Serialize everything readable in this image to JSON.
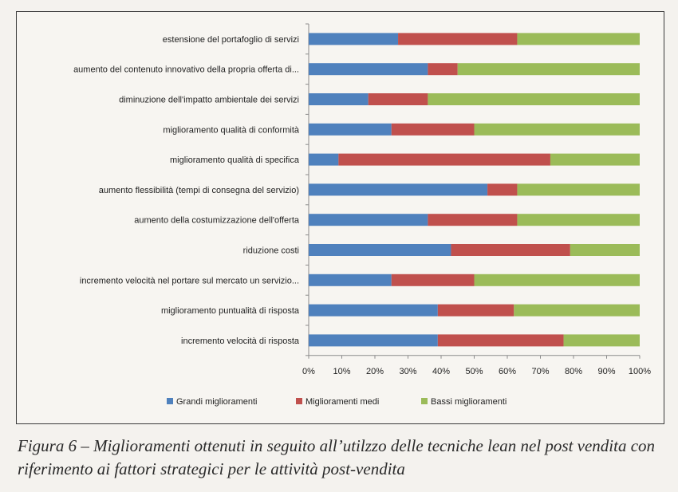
{
  "chart_data": {
    "type": "bar",
    "orientation": "horizontal",
    "stacked": "percent",
    "categories": [
      "estensione del portafoglio di servizi",
      "aumento del contenuto innovativo della propria offerta di...",
      "diminuzione dell'impatto ambientale dei servizi",
      "miglioramento qualità di conformità",
      "miglioramento qualità di specifica",
      "aumento flessibilità (tempi di consegna del servizio)",
      "aumento della costumizzazione  dell'offerta",
      "riduzione costi",
      "incremento velocità nel portare sul mercato un servizio...",
      "miglioramento puntualità di risposta",
      "incremento velocità di risposta"
    ],
    "series": [
      {
        "name": "Grandi miglioramenti",
        "color": "#4f81bd",
        "values": [
          27,
          36,
          18,
          25,
          9,
          54,
          36,
          43,
          25,
          39,
          39
        ]
      },
      {
        "name": "Miglioramenti medi",
        "color": "#c0504d",
        "values": [
          36,
          9,
          18,
          25,
          64,
          9,
          27,
          36,
          25,
          23,
          38
        ]
      },
      {
        "name": "Bassi miglioramenti",
        "color": "#9bbb59",
        "values": [
          37,
          55,
          64,
          50,
          27,
          37,
          37,
          21,
          50,
          38,
          23
        ]
      }
    ],
    "xlim": [
      0,
      100
    ],
    "xticks": [
      "0%",
      "10%",
      "20%",
      "30%",
      "40%",
      "50%",
      "60%",
      "70%",
      "80%",
      "90%",
      "100%"
    ],
    "legend_position": "bottom",
    "grid": false
  },
  "caption": "Figura 6 – Miglioramenti ottenuti in seguito all’utilzzo delle tecniche lean nel post vendita con riferimento ai fattori strategici per le attività post-vendita"
}
